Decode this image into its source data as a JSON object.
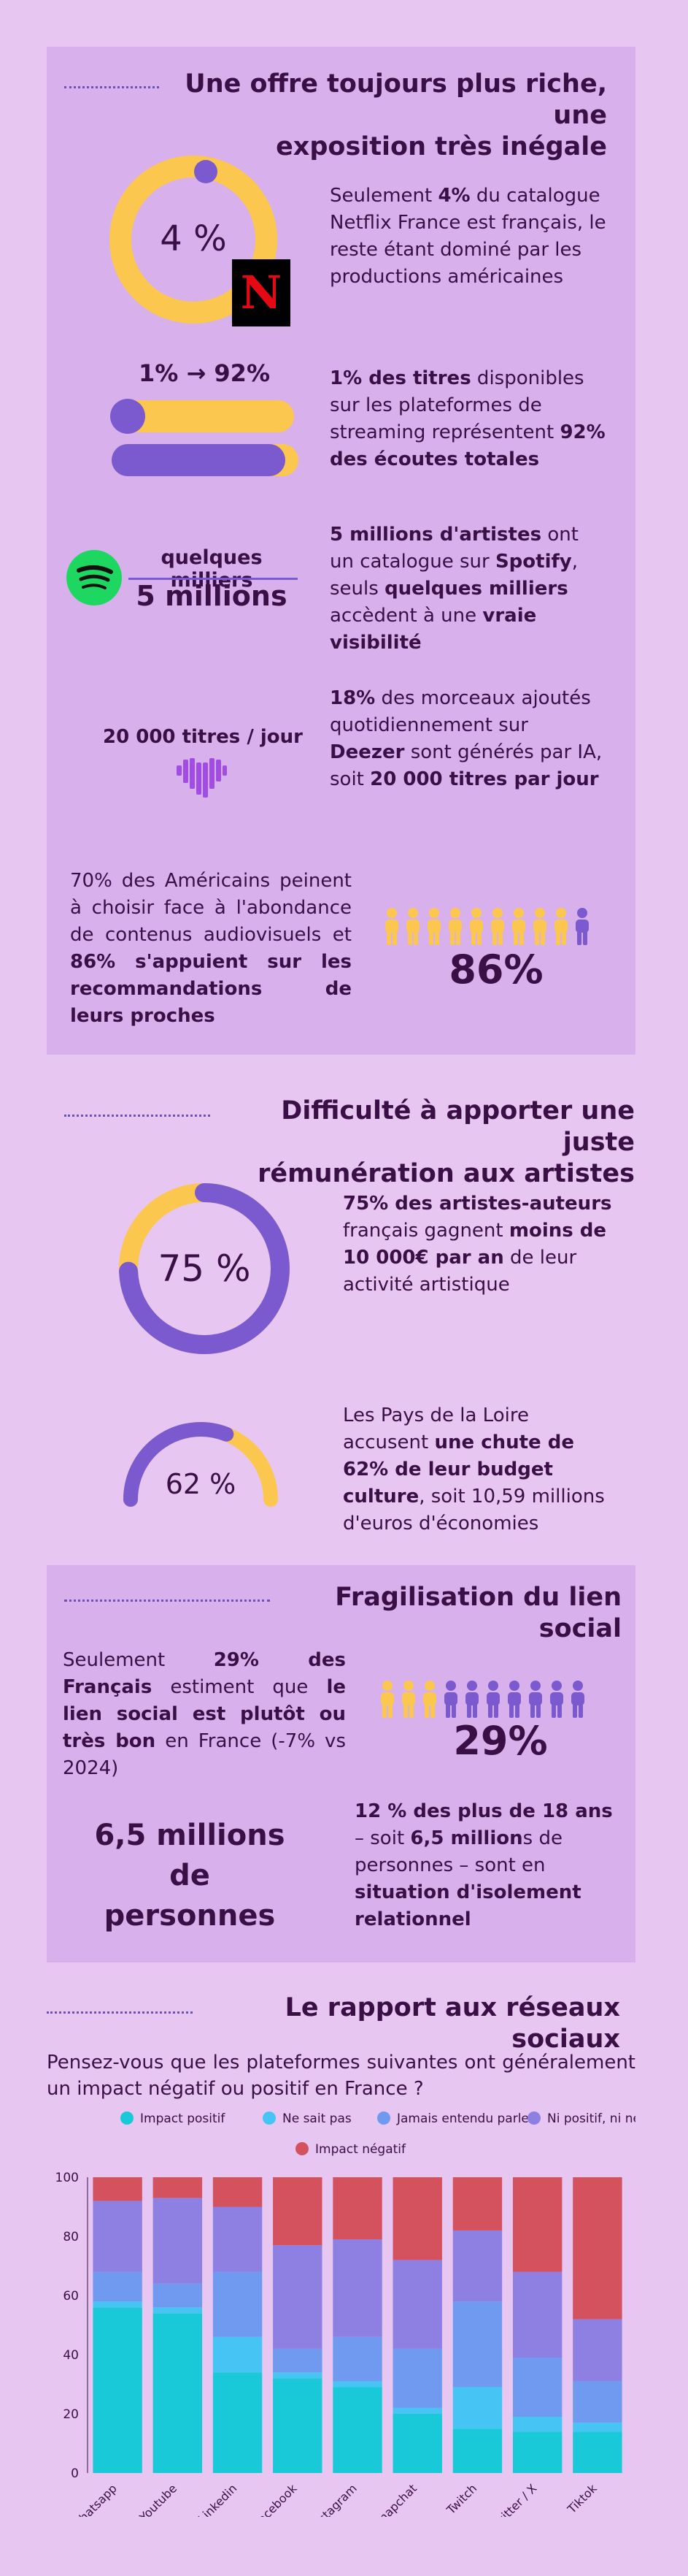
{
  "section1": {
    "title_line1": "Une offre toujours plus riche, une",
    "title_line2": "exposition très inégale",
    "stat_netflix": {
      "value": "4 %",
      "share": 0.04
    },
    "netflix_logo": "N",
    "text_netflix": {
      "p1": "Seulement ",
      "b1": "4%",
      "p2": " du catalogue Netflix France est français, le reste étant dominé par les productions américaines"
    },
    "stat_titles": {
      "label": "1% → 92%",
      "small_fill": 0.01,
      "big_fill": 0.92
    },
    "text_titles": {
      "b1": "1% des titres",
      "p1": " disponibles sur les plateformes de streaming représentent ",
      "b2": "92% des écoutes totales"
    },
    "stat_spotify": {
      "top": "quelques milliers",
      "bottom": "5 millions"
    },
    "text_spotify": {
      "b1": "5 millions d'artistes",
      "p1": " ont un catalogue sur ",
      "b2": "Spotify",
      "p2": ", seuls ",
      "b3": "quelques milliers",
      "p3": " accèdent à une ",
      "b4": "vraie visibilité"
    },
    "stat_deezer": {
      "label": "20 000 titres / jour"
    },
    "text_deezer": {
      "b1": "18%",
      "p1": " des morceaux ajoutés quotidiennement sur ",
      "b2": "Deezer",
      "p2": " sont générés par IA, soit ",
      "b3": "20 000 titres par jour"
    },
    "text_americans": {
      "p1": "70% des Américains peinent à choisir face à l'abondance de contenus audiovisuels et ",
      "b1": "86% s'appuient sur les recommandations de leurs proches"
    },
    "stat_americans": {
      "value": "86%",
      "highlighted": 9,
      "total": 10
    }
  },
  "section2": {
    "title_line1": "Difficulté à apporter une juste",
    "title_line2": "rémunération aux artistes",
    "stat_artists": {
      "value": "75 %",
      "share": 0.75
    },
    "text_artists": {
      "b1": "75% des artistes-auteurs",
      "p1": " français gagnent ",
      "b2": "moins de 10 000€ par an",
      "p2": " de leur activité artistique"
    },
    "stat_budget": {
      "value": "62 %",
      "share": 0.62
    },
    "text_budget": {
      "p1": "Les Pays de la Loire accusent ",
      "b1": "une chute de 62% de leur budget culture",
      "p2": ", soit 10,59 millions d'euros d'économies"
    }
  },
  "section3": {
    "title": "Fragilisation du lien social",
    "text_social": {
      "p1": "Seulement ",
      "b1": "29% des Français",
      "p2": " estiment que ",
      "b2": "le lien social est plutôt ou très bon",
      "p3": " en France (-7% vs 2024)"
    },
    "stat_social": {
      "value": "29%",
      "highlighted": 3,
      "total": 10
    },
    "stat_isolation": {
      "line1": "6,5  millions",
      "line2": "de personnes"
    },
    "text_isolation": {
      "b1": "12 % des plus de 18 ans",
      "p1": " – soit ",
      "b2": "6,5 million",
      "p2": "s de personnes – sont en ",
      "b3": "situation d'isolement relationnel"
    }
  },
  "section4": {
    "title": "Le rapport aux réseaux sociaux",
    "question": "Pensez-vous que les plateformes suivantes ont généralement un impact négatif ou positif en France ?"
  },
  "colors": {
    "yellow": "#fcc74f",
    "purple": "#7b59cf",
    "dark": "#3a0f45",
    "teal": "#19c9d8",
    "lightblue": "#46c4f3",
    "blue": "#6f9af0",
    "violet": "#8e80e2",
    "red": "#d3525e"
  },
  "chart_data": {
    "type": "bar",
    "stacked": true,
    "title": "",
    "xlabel": "",
    "ylabel": "",
    "ylim": [
      0,
      100
    ],
    "yticks": [
      0,
      20,
      40,
      60,
      80,
      100
    ],
    "legend_position": "top",
    "categories": [
      "Whatsapp",
      "Youtube",
      "Linkedin",
      "Facebook",
      "Instagram",
      "Snapchat",
      "Twitch",
      "Twitter / X",
      "Tiktok"
    ],
    "series": [
      {
        "name": "Impact positif",
        "color": "#19c9d8",
        "values": [
          56,
          54,
          34,
          32,
          29,
          20,
          15,
          14,
          14
        ]
      },
      {
        "name": "Ne sait pas",
        "color": "#46c4f3",
        "values": [
          2,
          2,
          12,
          2,
          2,
          2,
          14,
          5,
          3
        ]
      },
      {
        "name": "Jamais entendu parler",
        "color": "#6f9af0",
        "values": [
          10,
          8,
          22,
          8,
          15,
          20,
          29,
          20,
          14
        ]
      },
      {
        "name": "Ni positif, ni négatif",
        "color": "#8e80e2",
        "values": [
          24,
          29,
          22,
          35,
          33,
          30,
          24,
          29,
          21
        ]
      },
      {
        "name": "Impact négatif",
        "color": "#d3525e",
        "values": [
          8,
          7,
          10,
          23,
          21,
          28,
          18,
          32,
          48
        ]
      }
    ]
  }
}
